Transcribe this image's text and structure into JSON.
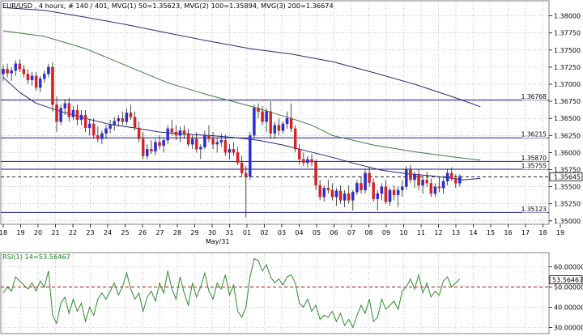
{
  "header": {
    "symbol": "EUR/USD",
    "info": "EUR/USD , 4 hours, # 140 / 401, MVG(1) 50=1.35623, MVG(2) 100=1.35894, MVG(3) 200=1.36674"
  },
  "rsi_header": "RSI(1) 14=53.56467",
  "month_label": "May/31",
  "colors": {
    "background": "#ffffff",
    "up_candle": "#2b2bd6",
    "down_candle": "#d42424",
    "ma50": "#25257a",
    "ma100": "#3d7a3d",
    "ma200": "#2a2a6e",
    "level_line": "#1e1e90",
    "rsi_line": "#2e8b2e",
    "rsi_ref": "#b01010",
    "grid": "#9a9a9a"
  },
  "chart_data": [
    {
      "type": "candlestick",
      "title": "EUR/USD , 4 hours",
      "ylim": [
        1.3495,
        1.3822
      ],
      "y_ticks": [
        "1.38000",
        "1.37750",
        "1.37500",
        "1.37250",
        "1.37000",
        "1.36750",
        "1.36500",
        "1.36250",
        "1.36000",
        "1.35750",
        "1.35500",
        "1.35250",
        "1.35000"
      ],
      "x_ticks": [
        "18",
        "19",
        "20",
        "21",
        "22",
        "23",
        "24",
        "25",
        "26",
        "27",
        "28",
        "29",
        "30",
        "31",
        "01",
        "02",
        "03",
        "04",
        "05",
        "06",
        "07",
        "08",
        "09",
        "10",
        "11",
        "12",
        "13",
        "14",
        "15",
        "16",
        "17",
        "18",
        "19"
      ],
      "grid": true,
      "levels": [
        {
          "label": "1.36768",
          "value": 1.36768,
          "style": "solid"
        },
        {
          "label": "1.36215",
          "value": 1.36215,
          "style": "solid"
        },
        {
          "label": "1.35870",
          "value": 1.3587,
          "style": "solid"
        },
        {
          "label": "1.35755",
          "value": 1.35755,
          "style": "solid"
        },
        {
          "label": "1.35645",
          "value": 1.35645,
          "style": "dashed"
        },
        {
          "label": "1.35123",
          "value": 1.35123,
          "style": "solid"
        }
      ],
      "current_price_label": "1.35645",
      "series": [
        {
          "name": "MVG(1) 50",
          "value_label": "1.35623",
          "points": [
            [
              0,
              1.371
            ],
            [
              4,
              1.3688
            ],
            [
              8,
              1.3672
            ],
            [
              14,
              1.366
            ],
            [
              20,
              1.365
            ],
            [
              26,
              1.3641
            ],
            [
              32,
              1.3636
            ],
            [
              38,
              1.363
            ],
            [
              44,
              1.3627
            ],
            [
              50,
              1.3625
            ],
            [
              56,
              1.3622
            ],
            [
              62,
              1.3618
            ],
            [
              68,
              1.3611
            ],
            [
              74,
              1.3602
            ],
            [
              80,
              1.3593
            ],
            [
              86,
              1.3583
            ],
            [
              92,
              1.3574
            ],
            [
              98,
              1.3569
            ],
            [
              104,
              1.3566
            ],
            [
              108,
              1.3563
            ],
            [
              112,
              1.356
            ],
            [
              116,
              1.3562
            ]
          ]
        },
        {
          "name": "MVG(2) 100",
          "value_label": "1.35894",
          "points": [
            [
              0,
              1.3778
            ],
            [
              10,
              1.377
            ],
            [
              20,
              1.3752
            ],
            [
              30,
              1.3727
            ],
            [
              40,
              1.3702
            ],
            [
              50,
              1.3684
            ],
            [
              60,
              1.3668
            ],
            [
              70,
              1.365
            ],
            [
              75,
              1.364
            ],
            [
              80,
              1.3625
            ],
            [
              90,
              1.3611
            ],
            [
              100,
              1.3601
            ],
            [
              110,
              1.3593
            ],
            [
              116,
              1.3589
            ]
          ]
        },
        {
          "name": "MVG(3) 200",
          "value_label": "1.36674",
          "points": [
            [
              0,
              1.3812
            ],
            [
              10,
              1.3808
            ],
            [
              20,
              1.3798
            ],
            [
              30,
              1.3787
            ],
            [
              40,
              1.3775
            ],
            [
              50,
              1.3763
            ],
            [
              60,
              1.3752
            ],
            [
              70,
              1.3744
            ],
            [
              80,
              1.3733
            ],
            [
              90,
              1.3717
            ],
            [
              100,
              1.37
            ],
            [
              110,
              1.368
            ],
            [
              116,
              1.3667
            ]
          ]
        }
      ],
      "candles": [
        [
          1.3715,
          1.3728,
          1.3705,
          1.3722
        ],
        [
          1.3722,
          1.373,
          1.371,
          1.3716
        ],
        [
          1.3716,
          1.3725,
          1.3705,
          1.372
        ],
        [
          1.372,
          1.3735,
          1.3712,
          1.373
        ],
        [
          1.373,
          1.3736,
          1.3718,
          1.3722
        ],
        [
          1.3722,
          1.3728,
          1.371,
          1.3715
        ],
        [
          1.3715,
          1.3722,
          1.37,
          1.3706
        ],
        [
          1.3706,
          1.3718,
          1.3698,
          1.3712
        ],
        [
          1.3712,
          1.3718,
          1.369,
          1.3695
        ],
        [
          1.3695,
          1.3712,
          1.3688,
          1.3708
        ],
        [
          1.3708,
          1.372,
          1.3702,
          1.3715
        ],
        [
          1.3715,
          1.373,
          1.371,
          1.3725
        ],
        [
          1.3725,
          1.3732,
          1.366,
          1.367
        ],
        [
          1.367,
          1.3682,
          1.363,
          1.3645
        ],
        [
          1.3645,
          1.367,
          1.364,
          1.3665
        ],
        [
          1.3665,
          1.3678,
          1.3655,
          1.3672
        ],
        [
          1.3672,
          1.368,
          1.3645,
          1.3652
        ],
        [
          1.3652,
          1.3668,
          1.3648,
          1.3662
        ],
        [
          1.3662,
          1.367,
          1.364,
          1.3648
        ],
        [
          1.3648,
          1.3662,
          1.364,
          1.3655
        ],
        [
          1.3655,
          1.3662,
          1.363,
          1.3636
        ],
        [
          1.3636,
          1.3648,
          1.3625,
          1.3642
        ],
        [
          1.3642,
          1.365,
          1.362,
          1.3625
        ],
        [
          1.3625,
          1.3638,
          1.3615,
          1.362
        ],
        [
          1.362,
          1.3632,
          1.3612,
          1.3628
        ],
        [
          1.3628,
          1.364,
          1.362,
          1.3635
        ],
        [
          1.3635,
          1.3648,
          1.3628,
          1.364
        ],
        [
          1.364,
          1.3652,
          1.3632,
          1.3646
        ],
        [
          1.3646,
          1.3655,
          1.3638,
          1.365
        ],
        [
          1.365,
          1.366,
          1.364,
          1.3645
        ],
        [
          1.3645,
          1.3665,
          1.364,
          1.3658
        ],
        [
          1.3658,
          1.367,
          1.3648,
          1.3652
        ],
        [
          1.3652,
          1.366,
          1.3632,
          1.3636
        ],
        [
          1.3636,
          1.3645,
          1.3615,
          1.362
        ],
        [
          1.362,
          1.363,
          1.359,
          1.3595
        ],
        [
          1.3595,
          1.3612,
          1.359,
          1.3605
        ],
        [
          1.3605,
          1.3618,
          1.3598,
          1.3602
        ],
        [
          1.3602,
          1.362,
          1.3596,
          1.3615
        ],
        [
          1.3615,
          1.3625,
          1.3605,
          1.361
        ],
        [
          1.361,
          1.3622,
          1.36,
          1.3618
        ],
        [
          1.3618,
          1.364,
          1.3612,
          1.3635
        ],
        [
          1.3635,
          1.3648,
          1.3625,
          1.363
        ],
        [
          1.363,
          1.364,
          1.3618,
          1.3625
        ],
        [
          1.3625,
          1.3638,
          1.3615,
          1.3632
        ],
        [
          1.3632,
          1.364,
          1.362,
          1.3628
        ],
        [
          1.3628,
          1.3635,
          1.3608,
          1.3612
        ],
        [
          1.3612,
          1.3625,
          1.3605,
          1.362
        ],
        [
          1.362,
          1.363,
          1.36,
          1.3605
        ],
        [
          1.3605,
          1.3612,
          1.359,
          1.3608
        ],
        [
          1.3608,
          1.3632,
          1.3605,
          1.3625
        ],
        [
          1.3625,
          1.364,
          1.3615,
          1.362
        ],
        [
          1.362,
          1.363,
          1.3605,
          1.3612
        ],
        [
          1.3612,
          1.3622,
          1.36,
          1.3615
        ],
        [
          1.3615,
          1.3628,
          1.3608,
          1.3618
        ],
        [
          1.3618,
          1.3626,
          1.3595,
          1.36
        ],
        [
          1.36,
          1.3612,
          1.359,
          1.3605
        ],
        [
          1.3605,
          1.3615,
          1.3595,
          1.36
        ],
        [
          1.36,
          1.3608,
          1.3582,
          1.3585
        ],
        [
          1.3585,
          1.3595,
          1.3565,
          1.357
        ],
        [
          1.357,
          1.358,
          1.3505,
          1.3565
        ],
        [
          1.3565,
          1.363,
          1.356,
          1.3625
        ],
        [
          1.3625,
          1.367,
          1.362,
          1.3665
        ],
        [
          1.3665,
          1.3672,
          1.365,
          1.366
        ],
        [
          1.366,
          1.3668,
          1.364,
          1.3645
        ],
        [
          1.3645,
          1.3665,
          1.363,
          1.366
        ],
        [
          1.366,
          1.3675,
          1.362,
          1.3628
        ],
        [
          1.3628,
          1.3645,
          1.362,
          1.364
        ],
        [
          1.364,
          1.365,
          1.3625,
          1.3632
        ],
        [
          1.3632,
          1.3645,
          1.3628,
          1.3642
        ],
        [
          1.3642,
          1.366,
          1.3635,
          1.365
        ],
        [
          1.365,
          1.3672,
          1.363,
          1.3635
        ],
        [
          1.3635,
          1.364,
          1.36,
          1.3605
        ],
        [
          1.3605,
          1.3612,
          1.3582,
          1.359
        ],
        [
          1.359,
          1.36,
          1.358,
          1.3585
        ],
        [
          1.3585,
          1.3595,
          1.3578,
          1.359
        ],
        [
          1.359,
          1.3598,
          1.358,
          1.3586
        ],
        [
          1.3586,
          1.359,
          1.3545,
          1.3552
        ],
        [
          1.3552,
          1.356,
          1.353,
          1.3535
        ],
        [
          1.3535,
          1.3552,
          1.3528,
          1.3548
        ],
        [
          1.3548,
          1.356,
          1.354,
          1.3545
        ],
        [
          1.3545,
          1.3555,
          1.353,
          1.3535
        ],
        [
          1.3535,
          1.3548,
          1.3522,
          1.3544
        ],
        [
          1.3544,
          1.3552,
          1.3525,
          1.353
        ],
        [
          1.353,
          1.3545,
          1.352,
          1.354
        ],
        [
          1.354,
          1.3552,
          1.3525,
          1.353
        ],
        [
          1.353,
          1.3545,
          1.3515,
          1.3542
        ],
        [
          1.3542,
          1.356,
          1.3538,
          1.3555
        ],
        [
          1.3555,
          1.3565,
          1.354,
          1.3545
        ],
        [
          1.3545,
          1.3575,
          1.354,
          1.357
        ],
        [
          1.357,
          1.3578,
          1.355,
          1.3556
        ],
        [
          1.3556,
          1.3562,
          1.3528,
          1.3532
        ],
        [
          1.3532,
          1.3545,
          1.3515,
          1.354
        ],
        [
          1.354,
          1.3555,
          1.353,
          1.355
        ],
        [
          1.355,
          1.356,
          1.3525,
          1.3528
        ],
        [
          1.3528,
          1.3548,
          1.3522,
          1.3545
        ],
        [
          1.3545,
          1.3552,
          1.353,
          1.3538
        ],
        [
          1.3538,
          1.355,
          1.352,
          1.3545
        ],
        [
          1.3545,
          1.356,
          1.3535,
          1.355
        ],
        [
          1.355,
          1.358,
          1.3545,
          1.3575
        ],
        [
          1.3575,
          1.3582,
          1.3555,
          1.356
        ],
        [
          1.356,
          1.3572,
          1.3548,
          1.3568
        ],
        [
          1.3568,
          1.3575,
          1.3545,
          1.3552
        ],
        [
          1.3552,
          1.3565,
          1.354,
          1.356
        ],
        [
          1.356,
          1.3572,
          1.355,
          1.3555
        ],
        [
          1.3555,
          1.3562,
          1.3535,
          1.354
        ],
        [
          1.354,
          1.3555,
          1.3535,
          1.355
        ],
        [
          1.355,
          1.3565,
          1.3542,
          1.3548
        ],
        [
          1.3548,
          1.3562,
          1.354,
          1.3558
        ],
        [
          1.3558,
          1.3575,
          1.3552,
          1.357
        ],
        [
          1.357,
          1.3578,
          1.3558,
          1.3562
        ],
        [
          1.3562,
          1.3568,
          1.3548,
          1.3555
        ],
        [
          1.3555,
          1.3568,
          1.355,
          1.3565
        ]
      ]
    },
    {
      "type": "line",
      "title": "RSI(1) 14",
      "ylim": [
        27,
        67
      ],
      "y_ticks": [
        "60.00000",
        "50.00000",
        "40.00000",
        "30.00000"
      ],
      "reference_line": 50,
      "current_label": "53.56467",
      "series": [
        {
          "name": "RSI(1) 14",
          "values": [
            47,
            50,
            48,
            55,
            53,
            51,
            49,
            52,
            48,
            53,
            50,
            58,
            36,
            32,
            42,
            45,
            37,
            44,
            38,
            42,
            33,
            40,
            36,
            44,
            47,
            44,
            48,
            52,
            46,
            50,
            57,
            49,
            44,
            47,
            38,
            45,
            48,
            43,
            52,
            47,
            58,
            49,
            44,
            55,
            47,
            41,
            52,
            45,
            50,
            57,
            48,
            44,
            52,
            49,
            56,
            46,
            51,
            38,
            35,
            40,
            55,
            64,
            63,
            58,
            61,
            55,
            52,
            54,
            51,
            55,
            56,
            52,
            42,
            40,
            44,
            38,
            41,
            34,
            36,
            35,
            38,
            33,
            37,
            31,
            34,
            30,
            36,
            41,
            37,
            44,
            33,
            35,
            44,
            39,
            41,
            43,
            39,
            48,
            50,
            54,
            49,
            56,
            47,
            52,
            45,
            48,
            46,
            53,
            55,
            50,
            52,
            54
          ]
        }
      ]
    }
  ]
}
